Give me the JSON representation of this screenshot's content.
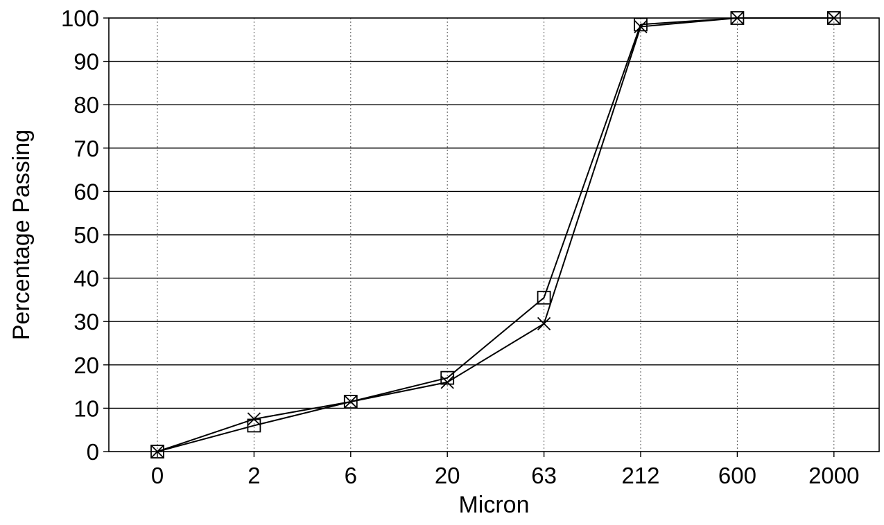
{
  "chart_data": {
    "type": "line",
    "title": "",
    "xlabel": "Micron",
    "ylabel": "Percentage Passing",
    "categories": [
      "0",
      "2",
      "6",
      "20",
      "63",
      "212",
      "600",
      "2000"
    ],
    "ylim": [
      0,
      100
    ],
    "yticks": [
      "0",
      "10",
      "20",
      "30",
      "40",
      "50",
      "60",
      "70",
      "80",
      "90",
      "100"
    ],
    "grid": {
      "x": "dotted",
      "y": "solid"
    },
    "legend": "none",
    "series": [
      {
        "marker": "square",
        "values": [
          0,
          6,
          11.5,
          17,
          35.5,
          98.5,
          100,
          100
        ]
      },
      {
        "marker": "x",
        "values": [
          0,
          7.5,
          11.5,
          16,
          29.5,
          98,
          100,
          100
        ]
      }
    ]
  }
}
